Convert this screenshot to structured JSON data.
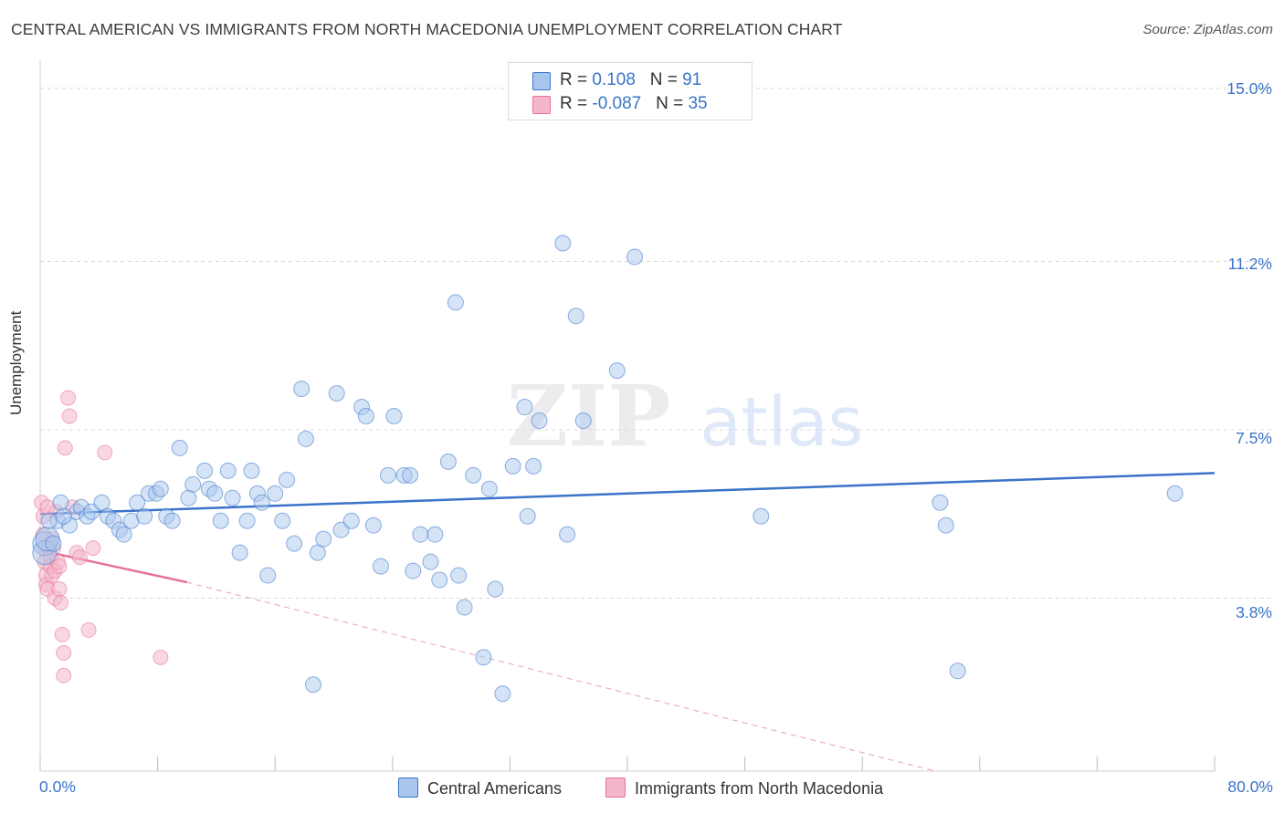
{
  "header": {
    "title": "CENTRAL AMERICAN VS IMMIGRANTS FROM NORTH MACEDONIA UNEMPLOYMENT CORRELATION CHART",
    "source": "Source: ZipAtlas.com"
  },
  "watermark": {
    "zip": "ZIP",
    "atlas": "atlas"
  },
  "legend": {
    "rows": [
      {
        "r_label": "R = ",
        "r_value": "0.108",
        "n_label": "N = ",
        "n_value": "91"
      },
      {
        "r_label": "R = ",
        "r_value": "-0.087",
        "n_label": "N = ",
        "n_value": "35"
      }
    ]
  },
  "chart_data": {
    "type": "scatter",
    "title": "CENTRAL AMERICAN VS IMMIGRANTS FROM NORTH MACEDONIA UNEMPLOYMENT CORRELATION CHART",
    "xlabel": "",
    "ylabel": "Unemployment",
    "xlim": [
      0,
      80
    ],
    "ylim": [
      0,
      15.5
    ],
    "x_tick_labels": [
      "0.0%",
      "80.0%"
    ],
    "y_ticks": [
      3.8,
      7.5,
      11.2,
      15.0
    ],
    "y_tick_labels": [
      "3.8%",
      "7.5%",
      "11.2%",
      "15.0%"
    ],
    "colors": {
      "blue": "#3a73c9",
      "blue_fill": "#a9c7ee",
      "pink": "#e8709a",
      "pink_fill": "#f4b6c9"
    },
    "series": [
      {
        "name": "Central Americans",
        "color": "#3a73c9",
        "r": 0.108,
        "n": 91,
        "trend": {
          "x0": 0,
          "y0": 5.65,
          "x1": 80,
          "y1": 6.55
        },
        "points": [
          [
            0.3,
            5.0
          ],
          [
            0.3,
            4.8
          ],
          [
            0.5,
            5.1
          ],
          [
            1.2,
            5.5
          ],
          [
            1.4,
            5.9
          ],
          [
            2.0,
            5.4
          ],
          [
            2.5,
            5.7
          ],
          [
            2.8,
            5.8
          ],
          [
            3.2,
            5.6
          ],
          [
            3.5,
            5.7
          ],
          [
            4.2,
            5.9
          ],
          [
            4.6,
            5.6
          ],
          [
            5.0,
            5.5
          ],
          [
            5.4,
            5.3
          ],
          [
            5.7,
            5.2
          ],
          [
            6.2,
            5.5
          ],
          [
            6.6,
            5.9
          ],
          [
            7.1,
            5.6
          ],
          [
            7.4,
            6.1
          ],
          [
            7.9,
            6.1
          ],
          [
            8.2,
            6.2
          ],
          [
            8.6,
            5.6
          ],
          [
            9.0,
            5.5
          ],
          [
            9.5,
            7.1
          ],
          [
            10.1,
            6.0
          ],
          [
            10.4,
            6.3
          ],
          [
            11.2,
            6.6
          ],
          [
            11.5,
            6.2
          ],
          [
            11.9,
            6.1
          ],
          [
            12.3,
            5.5
          ],
          [
            12.8,
            6.6
          ],
          [
            13.1,
            6.0
          ],
          [
            13.6,
            4.8
          ],
          [
            14.1,
            5.5
          ],
          [
            14.4,
            6.6
          ],
          [
            14.8,
            6.1
          ],
          [
            15.1,
            5.9
          ],
          [
            15.5,
            4.3
          ],
          [
            16.0,
            6.1
          ],
          [
            16.5,
            5.5
          ],
          [
            16.8,
            6.4
          ],
          [
            17.3,
            5.0
          ],
          [
            17.8,
            8.4
          ],
          [
            18.1,
            7.3
          ],
          [
            18.6,
            1.9
          ],
          [
            18.9,
            4.8
          ],
          [
            19.3,
            5.1
          ],
          [
            20.2,
            8.3
          ],
          [
            20.5,
            5.3
          ],
          [
            21.2,
            5.5
          ],
          [
            21.9,
            8.0
          ],
          [
            22.2,
            7.8
          ],
          [
            22.7,
            5.4
          ],
          [
            23.2,
            4.5
          ],
          [
            23.7,
            6.5
          ],
          [
            24.1,
            7.8
          ],
          [
            24.8,
            6.5
          ],
          [
            25.2,
            6.5
          ],
          [
            25.4,
            4.4
          ],
          [
            25.9,
            5.2
          ],
          [
            26.6,
            4.6
          ],
          [
            26.9,
            5.2
          ],
          [
            27.2,
            4.2
          ],
          [
            27.8,
            6.8
          ],
          [
            28.3,
            10.3
          ],
          [
            28.5,
            4.3
          ],
          [
            28.9,
            3.6
          ],
          [
            29.5,
            6.5
          ],
          [
            30.2,
            2.5
          ],
          [
            30.6,
            6.2
          ],
          [
            31.0,
            4.0
          ],
          [
            31.5,
            1.7
          ],
          [
            32.2,
            6.7
          ],
          [
            33.0,
            8.0
          ],
          [
            33.2,
            5.6
          ],
          [
            33.6,
            6.7
          ],
          [
            34.0,
            7.7
          ],
          [
            35.6,
            11.6
          ],
          [
            35.9,
            5.2
          ],
          [
            36.5,
            10.0
          ],
          [
            37.0,
            7.7
          ],
          [
            39.3,
            8.8
          ],
          [
            40.5,
            11.3
          ],
          [
            49.1,
            5.6
          ],
          [
            61.3,
            5.9
          ],
          [
            61.7,
            5.4
          ],
          [
            62.5,
            2.2
          ],
          [
            77.3,
            6.1
          ],
          [
            0.6,
            5.5
          ],
          [
            0.9,
            5.0
          ],
          [
            1.6,
            5.6
          ]
        ]
      },
      {
        "name": "Immigrants from North Macedonia",
        "color": "#e8709a",
        "r": -0.087,
        "n": 35,
        "trend": {
          "x0": 0,
          "y0": 4.85,
          "x1": 10,
          "y1": 4.15,
          "dashed_to": {
            "x": 61,
            "y": 0
          }
        },
        "points": [
          [
            0.1,
            5.9
          ],
          [
            0.2,
            5.6
          ],
          [
            0.2,
            5.2
          ],
          [
            0.3,
            4.9
          ],
          [
            0.3,
            4.6
          ],
          [
            0.4,
            4.3
          ],
          [
            0.4,
            4.1
          ],
          [
            0.5,
            5.8
          ],
          [
            0.5,
            4.0
          ],
          [
            0.6,
            5.0
          ],
          [
            0.7,
            4.7
          ],
          [
            0.7,
            4.5
          ],
          [
            0.8,
            5.1
          ],
          [
            0.8,
            4.3
          ],
          [
            0.9,
            4.9
          ],
          [
            1.0,
            4.4
          ],
          [
            1.0,
            3.8
          ],
          [
            1.1,
            5.7
          ],
          [
            1.2,
            4.6
          ],
          [
            1.3,
            4.5
          ],
          [
            1.3,
            4.0
          ],
          [
            1.4,
            3.7
          ],
          [
            1.5,
            3.0
          ],
          [
            1.6,
            2.6
          ],
          [
            1.6,
            2.1
          ],
          [
            1.7,
            7.1
          ],
          [
            1.9,
            8.2
          ],
          [
            2.0,
            7.8
          ],
          [
            2.2,
            5.8
          ],
          [
            2.5,
            4.8
          ],
          [
            2.7,
            4.7
          ],
          [
            3.3,
            3.1
          ],
          [
            3.6,
            4.9
          ],
          [
            4.4,
            7.0
          ],
          [
            8.2,
            2.5
          ]
        ]
      }
    ]
  },
  "axes": {
    "y_title": "Unemployment",
    "x_min_label": "0.0%",
    "x_max_label": "80.0%",
    "y_labels": [
      "15.0%",
      "11.2%",
      "7.5%",
      "3.8%"
    ]
  },
  "bottom_legend": {
    "items": [
      {
        "label": "Central Americans"
      },
      {
        "label": "Immigrants from North Macedonia"
      }
    ]
  }
}
